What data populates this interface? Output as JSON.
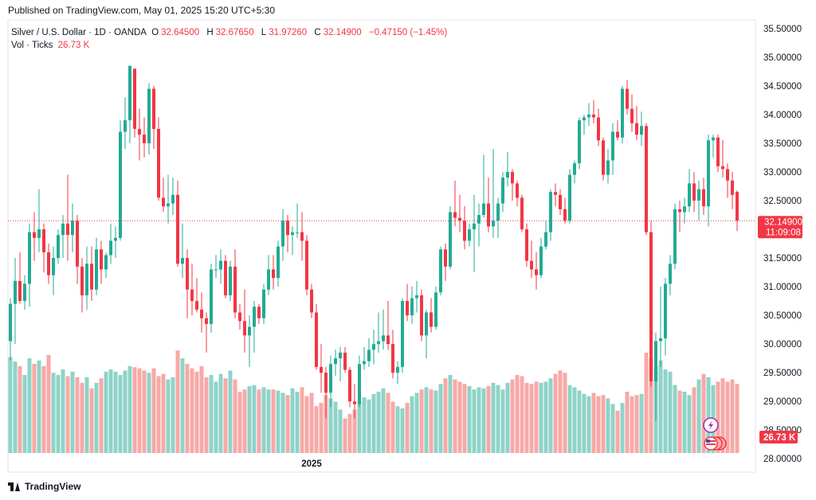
{
  "header": {
    "published": "Published on TradingView.com, May 01, 2025 15:20 UTC+5:30"
  },
  "legend": {
    "symbol": "Silver / U.S. Dollar · 1D · OANDA",
    "o_label": "O",
    "o_value": "32.64500",
    "h_label": "H",
    "h_value": "32.67650",
    "l_label": "L",
    "l_value": "31.97260",
    "c_label": "C",
    "c_value": "32.14900",
    "change": "−0.47150 (−1.45%)",
    "vol_label": "Vol · Ticks",
    "vol_value": "26.73 K"
  },
  "footer": {
    "brand": "TradingView"
  },
  "colors": {
    "up": "#22ab94",
    "down": "#f23645",
    "vol_up": "#8fd3c8",
    "vol_down": "#f7a9a7",
    "price_tag": "#f23645"
  },
  "chart_data": {
    "type": "candlestick",
    "ylim": [
      28.1,
      35.65
    ],
    "y_ticks": [
      "35.50000",
      "35.00000",
      "34.50000",
      "34.00000",
      "33.50000",
      "33.00000",
      "32.50000",
      "32.00000",
      "31.50000",
      "31.00000",
      "30.50000",
      "30.00000",
      "29.50000",
      "29.00000",
      "28.50000",
      "28.00000"
    ],
    "x_labels": [
      {
        "index": 63,
        "label": "2025"
      }
    ],
    "last_price": "32.14900",
    "countdown": "11:09:08",
    "volume_last": "26.73 K",
    "candles": [
      {
        "o": 30.05,
        "h": 30.8,
        "l": 29.72,
        "c": 30.7,
        "v": 0.86
      },
      {
        "o": 30.7,
        "h": 31.5,
        "l": 30.0,
        "c": 31.1,
        "v": 0.82
      },
      {
        "o": 31.1,
        "h": 31.6,
        "l": 30.7,
        "c": 30.75,
        "v": 0.78
      },
      {
        "o": 30.75,
        "h": 31.2,
        "l": 30.6,
        "c": 31.05,
        "v": 0.7
      },
      {
        "o": 31.05,
        "h": 32.1,
        "l": 30.65,
        "c": 31.95,
        "v": 0.85
      },
      {
        "o": 31.95,
        "h": 32.3,
        "l": 31.45,
        "c": 31.85,
        "v": 0.8
      },
      {
        "o": 31.85,
        "h": 32.7,
        "l": 31.6,
        "c": 32.0,
        "v": 0.83
      },
      {
        "o": 32.0,
        "h": 32.1,
        "l": 31.25,
        "c": 31.6,
        "v": 0.78
      },
      {
        "o": 31.6,
        "h": 31.75,
        "l": 31.05,
        "c": 31.2,
        "v": 0.88
      },
      {
        "o": 31.2,
        "h": 31.7,
        "l": 30.85,
        "c": 31.5,
        "v": 0.72
      },
      {
        "o": 31.5,
        "h": 32.0,
        "l": 31.4,
        "c": 31.9,
        "v": 0.7
      },
      {
        "o": 31.9,
        "h": 32.25,
        "l": 31.5,
        "c": 32.1,
        "v": 0.75
      },
      {
        "o": 32.1,
        "h": 32.95,
        "l": 31.45,
        "c": 31.9,
        "v": 0.69
      },
      {
        "o": 31.9,
        "h": 32.45,
        "l": 31.6,
        "c": 32.15,
        "v": 0.73
      },
      {
        "o": 32.15,
        "h": 32.25,
        "l": 31.05,
        "c": 31.35,
        "v": 0.68
      },
      {
        "o": 31.35,
        "h": 31.5,
        "l": 30.55,
        "c": 30.85,
        "v": 0.63
      },
      {
        "o": 30.85,
        "h": 31.7,
        "l": 30.6,
        "c": 31.4,
        "v": 0.68
      },
      {
        "o": 31.4,
        "h": 31.7,
        "l": 30.75,
        "c": 30.95,
        "v": 0.58
      },
      {
        "o": 30.95,
        "h": 31.85,
        "l": 30.85,
        "c": 31.65,
        "v": 0.63
      },
      {
        "o": 31.65,
        "h": 31.8,
        "l": 31.05,
        "c": 31.3,
        "v": 0.67
      },
      {
        "o": 31.3,
        "h": 31.6,
        "l": 31.15,
        "c": 31.55,
        "v": 0.73
      },
      {
        "o": 31.55,
        "h": 32.1,
        "l": 31.4,
        "c": 31.8,
        "v": 0.75
      },
      {
        "o": 31.8,
        "h": 32.05,
        "l": 31.5,
        "c": 31.85,
        "v": 0.73
      },
      {
        "o": 31.85,
        "h": 33.9,
        "l": 31.8,
        "c": 33.7,
        "v": 0.7
      },
      {
        "o": 33.7,
        "h": 34.3,
        "l": 33.4,
        "c": 33.9,
        "v": 0.74
      },
      {
        "o": 33.9,
        "h": 34.85,
        "l": 33.5,
        "c": 34.85,
        "v": 0.78
      },
      {
        "o": 34.8,
        "h": 34.8,
        "l": 33.6,
        "c": 33.75,
        "v": 0.77
      },
      {
        "o": 33.75,
        "h": 34.1,
        "l": 33.2,
        "c": 33.65,
        "v": 0.76
      },
      {
        "o": 33.65,
        "h": 33.95,
        "l": 33.25,
        "c": 33.5,
        "v": 0.74
      },
      {
        "o": 33.5,
        "h": 34.55,
        "l": 33.3,
        "c": 34.45,
        "v": 0.72
      },
      {
        "o": 34.45,
        "h": 34.5,
        "l": 33.4,
        "c": 33.75,
        "v": 0.76
      },
      {
        "o": 33.75,
        "h": 33.95,
        "l": 32.5,
        "c": 32.55,
        "v": 0.69
      },
      {
        "o": 32.55,
        "h": 32.9,
        "l": 32.3,
        "c": 32.4,
        "v": 0.71
      },
      {
        "o": 32.4,
        "h": 32.95,
        "l": 32.1,
        "c": 32.45,
        "v": 0.66
      },
      {
        "o": 32.45,
        "h": 32.9,
        "l": 32.25,
        "c": 32.6,
        "v": 0.68
      },
      {
        "o": 32.6,
        "h": 32.85,
        "l": 31.35,
        "c": 31.4,
        "v": 0.92
      },
      {
        "o": 31.4,
        "h": 32.1,
        "l": 31.15,
        "c": 31.5,
        "v": 0.85
      },
      {
        "o": 31.5,
        "h": 31.65,
        "l": 30.45,
        "c": 30.95,
        "v": 0.8
      },
      {
        "o": 30.95,
        "h": 31.4,
        "l": 30.5,
        "c": 30.75,
        "v": 0.76
      },
      {
        "o": 30.75,
        "h": 31.15,
        "l": 30.55,
        "c": 30.6,
        "v": 0.73
      },
      {
        "o": 30.6,
        "h": 30.9,
        "l": 30.2,
        "c": 30.45,
        "v": 0.78
      },
      {
        "o": 30.45,
        "h": 30.55,
        "l": 29.85,
        "c": 30.35,
        "v": 0.68
      },
      {
        "o": 30.35,
        "h": 31.4,
        "l": 30.2,
        "c": 31.3,
        "v": 0.7
      },
      {
        "o": 31.3,
        "h": 31.55,
        "l": 31.15,
        "c": 31.3,
        "v": 0.64
      },
      {
        "o": 31.3,
        "h": 31.65,
        "l": 31.05,
        "c": 31.45,
        "v": 0.71
      },
      {
        "o": 31.45,
        "h": 31.55,
        "l": 30.8,
        "c": 30.85,
        "v": 0.67
      },
      {
        "o": 30.85,
        "h": 31.45,
        "l": 30.75,
        "c": 31.35,
        "v": 0.74
      },
      {
        "o": 31.35,
        "h": 31.65,
        "l": 30.45,
        "c": 30.55,
        "v": 0.66
      },
      {
        "o": 30.55,
        "h": 30.7,
        "l": 30.25,
        "c": 30.4,
        "v": 0.55
      },
      {
        "o": 30.4,
        "h": 30.95,
        "l": 29.85,
        "c": 30.15,
        "v": 0.57
      },
      {
        "o": 30.15,
        "h": 30.5,
        "l": 29.6,
        "c": 30.3,
        "v": 0.6
      },
      {
        "o": 30.3,
        "h": 30.75,
        "l": 29.85,
        "c": 30.65,
        "v": 0.61
      },
      {
        "o": 30.65,
        "h": 30.7,
        "l": 30.35,
        "c": 30.45,
        "v": 0.57
      },
      {
        "o": 30.45,
        "h": 31.05,
        "l": 30.35,
        "c": 30.95,
        "v": 0.59
      },
      {
        "o": 30.95,
        "h": 31.55,
        "l": 30.85,
        "c": 31.3,
        "v": 0.57
      },
      {
        "o": 31.3,
        "h": 31.55,
        "l": 30.95,
        "c": 31.15,
        "v": 0.57
      },
      {
        "o": 31.15,
        "h": 31.8,
        "l": 31.0,
        "c": 31.7,
        "v": 0.56
      },
      {
        "o": 31.7,
        "h": 32.35,
        "l": 31.45,
        "c": 32.15,
        "v": 0.54
      },
      {
        "o": 32.15,
        "h": 32.25,
        "l": 31.6,
        "c": 31.9,
        "v": 0.52
      },
      {
        "o": 31.9,
        "h": 32.05,
        "l": 31.55,
        "c": 31.95,
        "v": 0.58
      },
      {
        "o": 31.95,
        "h": 32.45,
        "l": 31.85,
        "c": 31.95,
        "v": 0.55
      },
      {
        "o": 31.95,
        "h": 32.3,
        "l": 31.45,
        "c": 31.8,
        "v": 0.59
      },
      {
        "o": 31.8,
        "h": 31.9,
        "l": 30.85,
        "c": 30.95,
        "v": 0.51
      },
      {
        "o": 30.95,
        "h": 31.05,
        "l": 30.45,
        "c": 30.55,
        "v": 0.54
      },
      {
        "o": 30.55,
        "h": 30.7,
        "l": 29.55,
        "c": 29.6,
        "v": 0.42
      },
      {
        "o": 29.6,
        "h": 30.0,
        "l": 29.15,
        "c": 29.5,
        "v": 0.45
      },
      {
        "o": 29.5,
        "h": 29.6,
        "l": 28.7,
        "c": 29.15,
        "v": 0.52
      },
      {
        "o": 29.15,
        "h": 29.8,
        "l": 28.9,
        "c": 29.65,
        "v": 0.49
      },
      {
        "o": 29.65,
        "h": 29.9,
        "l": 29.45,
        "c": 29.75,
        "v": 0.46
      },
      {
        "o": 29.75,
        "h": 29.95,
        "l": 29.35,
        "c": 29.85,
        "v": 0.39
      },
      {
        "o": 29.85,
        "h": 29.95,
        "l": 29.5,
        "c": 29.55,
        "v": 0.31
      },
      {
        "o": 29.55,
        "h": 29.6,
        "l": 28.9,
        "c": 29.0,
        "v": 0.35
      },
      {
        "o": 29.0,
        "h": 29.3,
        "l": 28.7,
        "c": 28.95,
        "v": 0.39
      },
      {
        "o": 28.95,
        "h": 29.8,
        "l": 28.9,
        "c": 29.65,
        "v": 0.46
      },
      {
        "o": 29.65,
        "h": 29.95,
        "l": 29.55,
        "c": 29.7,
        "v": 0.5
      },
      {
        "o": 29.7,
        "h": 30.1,
        "l": 29.6,
        "c": 29.9,
        "v": 0.48
      },
      {
        "o": 29.9,
        "h": 30.25,
        "l": 29.65,
        "c": 30.0,
        "v": 0.53
      },
      {
        "o": 30.0,
        "h": 30.55,
        "l": 29.85,
        "c": 30.05,
        "v": 0.55
      },
      {
        "o": 30.05,
        "h": 30.6,
        "l": 29.9,
        "c": 30.15,
        "v": 0.58
      },
      {
        "o": 30.15,
        "h": 30.75,
        "l": 29.9,
        "c": 30.0,
        "v": 0.54
      },
      {
        "o": 30.0,
        "h": 30.25,
        "l": 29.4,
        "c": 29.5,
        "v": 0.46
      },
      {
        "o": 29.5,
        "h": 29.7,
        "l": 29.3,
        "c": 29.6,
        "v": 0.42
      },
      {
        "o": 29.6,
        "h": 30.8,
        "l": 29.5,
        "c": 30.75,
        "v": 0.4
      },
      {
        "o": 30.75,
        "h": 31.05,
        "l": 30.4,
        "c": 30.5,
        "v": 0.45
      },
      {
        "o": 30.5,
        "h": 31.0,
        "l": 30.35,
        "c": 30.8,
        "v": 0.51
      },
      {
        "o": 30.8,
        "h": 31.1,
        "l": 30.55,
        "c": 30.85,
        "v": 0.54
      },
      {
        "o": 30.85,
        "h": 30.95,
        "l": 30.05,
        "c": 30.15,
        "v": 0.57
      },
      {
        "o": 30.15,
        "h": 30.6,
        "l": 29.75,
        "c": 30.55,
        "v": 0.59
      },
      {
        "o": 30.55,
        "h": 30.8,
        "l": 30.2,
        "c": 30.3,
        "v": 0.57
      },
      {
        "o": 30.3,
        "h": 31.0,
        "l": 30.25,
        "c": 30.9,
        "v": 0.56
      },
      {
        "o": 30.9,
        "h": 31.7,
        "l": 30.85,
        "c": 31.65,
        "v": 0.62
      },
      {
        "o": 31.65,
        "h": 31.75,
        "l": 31.1,
        "c": 31.35,
        "v": 0.67
      },
      {
        "o": 31.35,
        "h": 32.4,
        "l": 31.3,
        "c": 32.3,
        "v": 0.7
      },
      {
        "o": 32.3,
        "h": 32.85,
        "l": 32.05,
        "c": 32.2,
        "v": 0.66
      },
      {
        "o": 32.2,
        "h": 32.6,
        "l": 31.95,
        "c": 32.15,
        "v": 0.64
      },
      {
        "o": 32.15,
        "h": 32.4,
        "l": 31.65,
        "c": 31.8,
        "v": 0.62
      },
      {
        "o": 31.8,
        "h": 32.1,
        "l": 31.7,
        "c": 32.0,
        "v": 0.6
      },
      {
        "o": 32.0,
        "h": 32.6,
        "l": 31.25,
        "c": 32.1,
        "v": 0.57
      },
      {
        "o": 32.1,
        "h": 32.45,
        "l": 31.7,
        "c": 32.25,
        "v": 0.59
      },
      {
        "o": 32.25,
        "h": 33.3,
        "l": 32.2,
        "c": 32.45,
        "v": 0.58
      },
      {
        "o": 32.45,
        "h": 32.9,
        "l": 31.95,
        "c": 32.05,
        "v": 0.6
      },
      {
        "o": 32.05,
        "h": 33.4,
        "l": 31.85,
        "c": 32.15,
        "v": 0.63
      },
      {
        "o": 32.15,
        "h": 32.55,
        "l": 31.85,
        "c": 32.45,
        "v": 0.61
      },
      {
        "o": 32.45,
        "h": 33.0,
        "l": 32.3,
        "c": 32.9,
        "v": 0.57
      },
      {
        "o": 32.9,
        "h": 33.35,
        "l": 32.75,
        "c": 33.0,
        "v": 0.63
      },
      {
        "o": 33.0,
        "h": 33.05,
        "l": 32.5,
        "c": 32.8,
        "v": 0.66
      },
      {
        "o": 32.8,
        "h": 32.85,
        "l": 32.4,
        "c": 32.55,
        "v": 0.7
      },
      {
        "o": 32.55,
        "h": 32.6,
        "l": 31.95,
        "c": 32.0,
        "v": 0.69
      },
      {
        "o": 32.0,
        "h": 32.1,
        "l": 31.35,
        "c": 31.45,
        "v": 0.63
      },
      {
        "o": 31.45,
        "h": 31.8,
        "l": 31.15,
        "c": 31.3,
        "v": 0.62
      },
      {
        "o": 31.3,
        "h": 31.6,
        "l": 30.95,
        "c": 31.2,
        "v": 0.64
      },
      {
        "o": 31.2,
        "h": 31.85,
        "l": 31.15,
        "c": 31.7,
        "v": 0.63
      },
      {
        "o": 31.7,
        "h": 32.15,
        "l": 31.65,
        "c": 31.95,
        "v": 0.64
      },
      {
        "o": 31.95,
        "h": 32.7,
        "l": 31.8,
        "c": 32.65,
        "v": 0.67
      },
      {
        "o": 32.65,
        "h": 32.8,
        "l": 32.4,
        "c": 32.6,
        "v": 0.71
      },
      {
        "o": 32.6,
        "h": 32.7,
        "l": 32.25,
        "c": 32.35,
        "v": 0.74
      },
      {
        "o": 32.35,
        "h": 32.55,
        "l": 32.1,
        "c": 32.15,
        "v": 0.72
      },
      {
        "o": 32.15,
        "h": 33.05,
        "l": 32.1,
        "c": 32.95,
        "v": 0.61
      },
      {
        "o": 32.95,
        "h": 33.2,
        "l": 32.8,
        "c": 33.15,
        "v": 0.59
      },
      {
        "o": 33.15,
        "h": 33.95,
        "l": 33.05,
        "c": 33.9,
        "v": 0.56
      },
      {
        "o": 33.9,
        "h": 34.0,
        "l": 33.65,
        "c": 33.95,
        "v": 0.53
      },
      {
        "o": 33.95,
        "h": 34.2,
        "l": 33.8,
        "c": 34.0,
        "v": 0.51
      },
      {
        "o": 34.0,
        "h": 34.25,
        "l": 33.85,
        "c": 33.95,
        "v": 0.54
      },
      {
        "o": 33.95,
        "h": 34.1,
        "l": 33.45,
        "c": 33.55,
        "v": 0.51
      },
      {
        "o": 33.55,
        "h": 33.6,
        "l": 32.85,
        "c": 32.95,
        "v": 0.52
      },
      {
        "o": 32.95,
        "h": 33.4,
        "l": 32.8,
        "c": 33.2,
        "v": 0.49
      },
      {
        "o": 33.2,
        "h": 33.85,
        "l": 32.95,
        "c": 33.7,
        "v": 0.44
      },
      {
        "o": 33.7,
        "h": 33.9,
        "l": 33.55,
        "c": 33.6,
        "v": 0.38
      },
      {
        "o": 33.6,
        "h": 34.5,
        "l": 33.5,
        "c": 34.45,
        "v": 0.45
      },
      {
        "o": 34.45,
        "h": 34.6,
        "l": 34.0,
        "c": 34.1,
        "v": 0.55
      },
      {
        "o": 34.1,
        "h": 34.35,
        "l": 33.7,
        "c": 33.85,
        "v": 0.51
      },
      {
        "o": 33.85,
        "h": 34.15,
        "l": 33.55,
        "c": 33.65,
        "v": 0.52
      },
      {
        "o": 33.65,
        "h": 34.05,
        "l": 33.45,
        "c": 33.8,
        "v": 0.53
      },
      {
        "o": 33.8,
        "h": 33.85,
        "l": 31.9,
        "c": 31.95,
        "v": 0.9
      },
      {
        "o": 31.95,
        "h": 32.15,
        "l": 29.25,
        "c": 29.35,
        "v": 0.85
      },
      {
        "o": 29.35,
        "h": 30.2,
        "l": 28.65,
        "c": 30.05,
        "v": 0.78
      },
      {
        "o": 30.05,
        "h": 31.0,
        "l": 29.6,
        "c": 30.1,
        "v": 0.83
      },
      {
        "o": 30.1,
        "h": 31.15,
        "l": 29.8,
        "c": 31.05,
        "v": 0.75
      },
      {
        "o": 31.05,
        "h": 31.55,
        "l": 30.85,
        "c": 31.4,
        "v": 0.73
      },
      {
        "o": 31.4,
        "h": 32.45,
        "l": 31.3,
        "c": 32.35,
        "v": 0.61
      },
      {
        "o": 32.35,
        "h": 32.5,
        "l": 31.95,
        "c": 32.3,
        "v": 0.56
      },
      {
        "o": 32.3,
        "h": 32.55,
        "l": 32.1,
        "c": 32.4,
        "v": 0.55
      },
      {
        "o": 32.4,
        "h": 33.05,
        "l": 32.3,
        "c": 32.8,
        "v": 0.52
      },
      {
        "o": 32.8,
        "h": 33.0,
        "l": 32.3,
        "c": 32.5,
        "v": 0.59
      },
      {
        "o": 32.5,
        "h": 32.85,
        "l": 32.15,
        "c": 32.7,
        "v": 0.66
      },
      {
        "o": 32.7,
        "h": 32.9,
        "l": 32.25,
        "c": 32.4,
        "v": 0.71
      },
      {
        "o": 32.4,
        "h": 33.65,
        "l": 32.05,
        "c": 33.55,
        "v": 0.68
      },
      {
        "o": 33.55,
        "h": 33.65,
        "l": 33.25,
        "c": 33.6,
        "v": 0.61
      },
      {
        "o": 33.6,
        "h": 33.65,
        "l": 33.0,
        "c": 33.1,
        "v": 0.64
      },
      {
        "o": 33.1,
        "h": 33.55,
        "l": 32.9,
        "c": 33.05,
        "v": 0.67
      },
      {
        "o": 33.05,
        "h": 33.15,
        "l": 32.55,
        "c": 32.85,
        "v": 0.64
      },
      {
        "o": 32.85,
        "h": 33.0,
        "l": 32.35,
        "c": 32.6,
        "v": 0.66
      },
      {
        "o": 32.65,
        "h": 32.68,
        "l": 31.97,
        "c": 32.15,
        "v": 0.62
      }
    ]
  }
}
